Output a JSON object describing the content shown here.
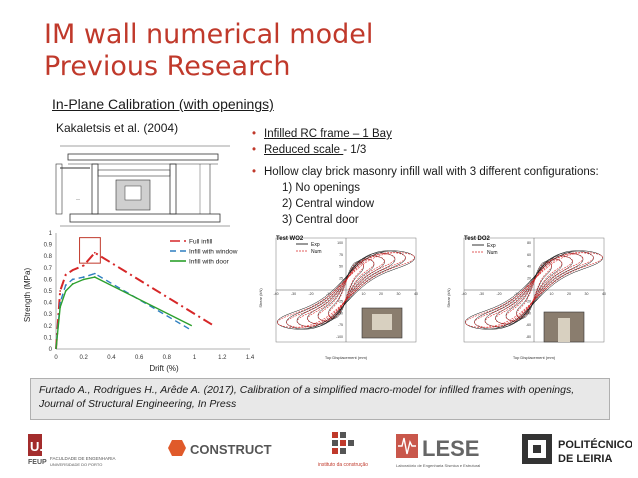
{
  "slide": {
    "title_line1": "IM wall numerical model",
    "title_line2": "Previous Research",
    "subtitle": "In-Plane Calibration (with openings)",
    "author": "Kakaletsis et al. (2004)",
    "bullets": {
      "b1": "Infilled RC frame – 1 Bay",
      "b2_underlined": "Reduced scale ",
      "b2_rest": "- 1/3",
      "b3": "Hollow clay brick masonry infill wall with 3 different configurations:",
      "sub1": "1) No openings",
      "sub2": "2) Central window",
      "sub3": "3) Central door"
    },
    "citation": "Furtado A., Rodrigues H., Arêde A. (2017), Calibration of a simplified macro-model for infilled frames with openings, Journal of Structural Engineering, In Press"
  },
  "chart_data": {
    "type": "line",
    "xlabel": "Drift (%)",
    "ylabel": "Strength (MPa)",
    "xlim": [
      0,
      1.4
    ],
    "ylim": [
      0,
      1
    ],
    "xticks": [
      "0",
      "0.2",
      "0.4",
      "0.6",
      "0.8",
      "1",
      "1.2",
      "1.4"
    ],
    "yticks": [
      "0",
      "0.1",
      "0.2",
      "0.3",
      "0.4",
      "0.5",
      "0.6",
      "0.7",
      "0.8",
      "0.9",
      "1"
    ],
    "legend_position": "top-right",
    "series": [
      {
        "name": "Full infill",
        "color": "#d62728",
        "dash": "10,4,2,4",
        "x": [
          0,
          0.03,
          0.07,
          0.12,
          0.2,
          0.28,
          1.14
        ],
        "y": [
          0,
          0.5,
          0.64,
          0.68,
          0.72,
          0.83,
          0.2
        ]
      },
      {
        "name": "Infill with window",
        "color": "#2f7fc0",
        "dash": "6,4",
        "x": [
          0,
          0.03,
          0.07,
          0.12,
          0.2,
          0.28,
          0.98
        ],
        "y": [
          0,
          0.4,
          0.55,
          0.6,
          0.62,
          0.65,
          0.16
        ]
      },
      {
        "name": "Infill with door",
        "color": "#2ca02c",
        "dash": "",
        "x": [
          0,
          0.03,
          0.07,
          0.12,
          0.2,
          0.28,
          0.98
        ],
        "y": [
          0,
          0.36,
          0.5,
          0.56,
          0.6,
          0.62,
          0.2
        ]
      }
    ],
    "highlight_box": {
      "x": [
        0.17,
        0.32
      ],
      "y": [
        0.74,
        0.96
      ]
    }
  },
  "experiments": {
    "wo2": {
      "title": "Test WO2",
      "legend": [
        "Exp",
        "Num"
      ],
      "xlabel": "Top Displacement (mm)",
      "ylabel": "Shear (kN)",
      "xticks": [
        "-40",
        "-30",
        "-20",
        "-10",
        "10",
        "20",
        "30",
        "40"
      ],
      "yticks": [
        "100",
        "75",
        "50",
        "25",
        "-25",
        "-50",
        "-75",
        "-100"
      ]
    },
    "do2": {
      "title": "Test DO2",
      "legend": [
        "Exp",
        "Num"
      ],
      "xlabel": "Top Displacement (mm)",
      "ylabel": "Shear (kN)",
      "xticks": [
        "-40",
        "-30",
        "-20",
        "-10",
        "10",
        "20",
        "30",
        "40"
      ],
      "yticks": [
        "80",
        "60",
        "40",
        "20",
        "-20",
        "-40",
        "-60",
        "-80"
      ]
    }
  },
  "footer": {
    "uporto": {
      "main": "U.PORTO",
      "sub1": "FEUP",
      "sub2": "FACULDADE DE ENGENHARIA",
      "sub3": "UNIVERSIDADE DO PORTO"
    },
    "construct": "CONSTRUCT",
    "instituto": "instituto da construção",
    "lese": {
      "main": "LESE",
      "sub": "Laboratório de Engenharia Sísmica e Estrutural"
    },
    "politecnico": {
      "line1": "POLITÉCNICO",
      "line2": "DE LEIRIA"
    }
  },
  "colors": {
    "accent": "#c0392b",
    "citation_bg": "#e8e8e8"
  }
}
